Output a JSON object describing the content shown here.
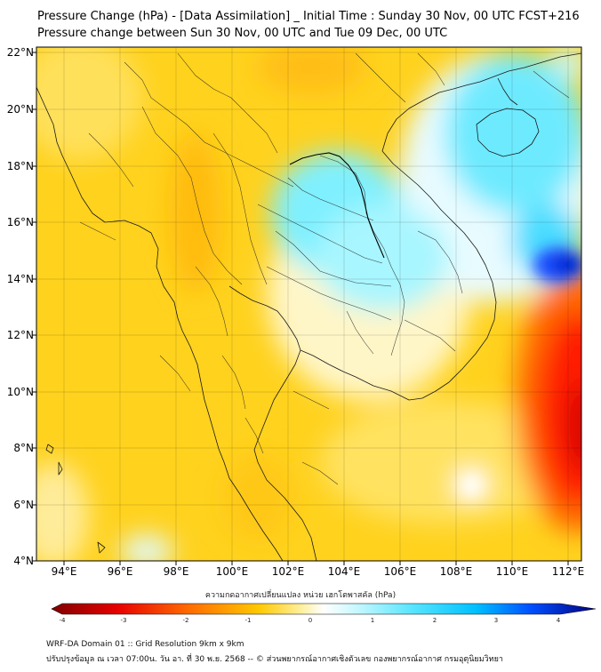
{
  "title_line1": "Pressure Change (hPa) - [Data Assimilation] _ Initial Time : Sunday 30 Nov, 00 UTC FCST+216",
  "title_line2": "Pressure change between Sun 30 Nov, 00 UTC and Tue 09 Dec, 00 UTC",
  "longitude_ticks": [
    "94°E",
    "96°E",
    "98°E",
    "100°E",
    "102°E",
    "104°E",
    "106°E",
    "108°E",
    "110°E",
    "112°E"
  ],
  "latitude_ticks": [
    "22°N",
    "20°N",
    "18°N",
    "16°N",
    "14°N",
    "12°N",
    "10°N",
    "8°N",
    "6°N",
    "4°N"
  ],
  "map_extent": {
    "lon_min": 93.0,
    "lon_max": 112.5,
    "lat_min": 4.0,
    "lat_max": 22.2
  },
  "colorbar": {
    "title": "ความกดอากาศเปลี่ยนแปลง หน่วย เฮกโตพาสคัล (hPa)",
    "ticks": [
      "-4",
      "-3",
      "-2",
      "-1",
      "0",
      "1",
      "2",
      "3",
      "4"
    ],
    "range": [
      -4,
      4
    ],
    "colors": {
      "min": "#7f0000",
      "neg_mid": "#ff2a00",
      "neg_low": "#ffc800",
      "zero": "#ffffff",
      "pos_low": "#5ae6ff",
      "pos_mid": "#00c0ff",
      "max": "#000080"
    }
  },
  "footer_line1": "WRF-DA Domain 01 :: Grid Resolution 9km x 9km",
  "footer_line2": "ปรับปรุงข้อมูล ณ เวลา 07:00น. วัน อา. ที่ 30 พ.ย. 2568 -- © ส่วนพยากรณ์อากาศเชิงตัวเลข กองพยากรณ์อากาศ กรมอุตุนิยมวิทยา"
}
